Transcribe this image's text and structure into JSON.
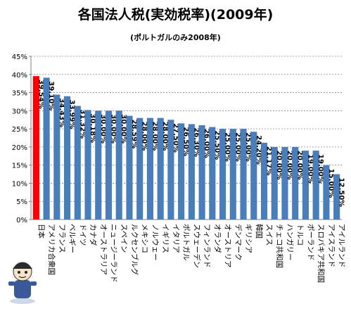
{
  "chart_data": {
    "type": "bar",
    "title": "各国法人税(実効税率)(2009年)",
    "subtitle": "(ポルトガルのみ2008年)",
    "ylim": [
      0,
      45
    ],
    "yticks": [
      "0%",
      "5%",
      "10%",
      "15%",
      "20%",
      "25%",
      "30%",
      "35%",
      "40%",
      "45%"
    ],
    "grid": true,
    "categories": [
      "日本",
      "アメリカ合衆国",
      "フランス",
      "ベルギー",
      "ドイツ",
      "カナダ",
      "オーストラリア",
      "ニュージーランド",
      "スペイン",
      "ルクセンブルグ",
      "メキシコ",
      "ノルウェー",
      "イギリス",
      "イタリア",
      "ポルトガル",
      "スウェーデン",
      "フィンランド",
      "オランダ",
      "オーストリア",
      "デンマーク",
      "ギリシア",
      "韓国",
      "スイス",
      "チェコ共和国",
      "ハンガリー",
      "トルコ",
      "ポーランド",
      "スロバキア共和国",
      "アイスランド",
      "アイルランド"
    ],
    "values": [
      39.54,
      39.1,
      34.43,
      33.99,
      31.32,
      30.18,
      30.0,
      30.0,
      30.0,
      28.59,
      28.0,
      28.0,
      28.0,
      27.5,
      26.5,
      26.3,
      26.0,
      25.5,
      25.0,
      25.0,
      25.0,
      24.2,
      21.17,
      20.0,
      20.0,
      20.0,
      19.0,
      19.0,
      15.0,
      12.5
    ],
    "value_labels": [
      "39.54%",
      "39.10%",
      "34.43%",
      "33.99%",
      "31.32%",
      "30.18%",
      "30.00%",
      "30.00%",
      "30.00%",
      "28.59%",
      "28.00%",
      "28.00%",
      "28.00%",
      "27.50%",
      "26.50%",
      "26.30%",
      "26.00%",
      "25.50%",
      "25.00%",
      "25.00%",
      "25.00%",
      "24.20%",
      "21.17%",
      "20.00%",
      "20.00%",
      "20.00%",
      "19.00%",
      "19.00%",
      "15.00%",
      "12.50%"
    ],
    "colors": {
      "highlight": "#ff0000",
      "bar": "#4a7ebb",
      "grid": "#888888",
      "axis": "#808080"
    }
  }
}
